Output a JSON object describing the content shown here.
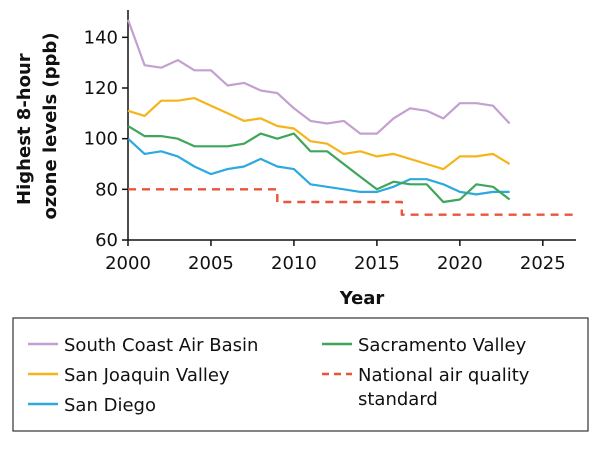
{
  "chart_data": {
    "type": "line",
    "xlabel": "Year",
    "ylabel_lines": [
      "Highest 8-hour",
      "ozone levels (ppb)"
    ],
    "xlim": [
      2000,
      2027
    ],
    "ylim": [
      60,
      150
    ],
    "xticks": [
      2000,
      2005,
      2010,
      2015,
      2020,
      2025
    ],
    "yticks": [
      60,
      80,
      100,
      120,
      140
    ],
    "grid": false,
    "legend_position": "below",
    "series": [
      {
        "name": "South Coast Air Basin",
        "color": "#c3a0cf",
        "dashed": false,
        "x": [
          2000,
          2001,
          2002,
          2003,
          2004,
          2005,
          2006,
          2007,
          2008,
          2009,
          2010,
          2011,
          2012,
          2013,
          2014,
          2015,
          2016,
          2017,
          2018,
          2019,
          2020,
          2021,
          2022,
          2023,
          2024,
          2025
        ],
        "values": [
          147,
          129,
          128,
          131,
          127,
          127,
          121,
          122,
          119,
          118,
          112,
          107,
          106,
          107,
          102,
          102,
          108,
          112,
          111,
          108,
          114,
          114,
          113,
          106,
          null,
          null
        ]
      },
      {
        "name": "San Joaquin Valley",
        "color": "#f5b51a",
        "dashed": false,
        "x": [
          2000,
          2001,
          2002,
          2003,
          2004,
          2005,
          2006,
          2007,
          2008,
          2009,
          2010,
          2011,
          2012,
          2013,
          2014,
          2015,
          2016,
          2017,
          2018,
          2019,
          2020,
          2021,
          2022,
          2023,
          2024,
          2025
        ],
        "values": [
          111,
          109,
          115,
          115,
          116,
          113,
          110,
          107,
          108,
          105,
          104,
          99,
          98,
          94,
          95,
          93,
          94,
          92,
          90,
          88,
          93,
          93,
          94,
          90,
          null,
          null
        ]
      },
      {
        "name": "San Diego",
        "color": "#2ca9df",
        "dashed": false,
        "x": [
          2000,
          2001,
          2002,
          2003,
          2004,
          2005,
          2006,
          2007,
          2008,
          2009,
          2010,
          2011,
          2012,
          2013,
          2014,
          2015,
          2016,
          2017,
          2018,
          2019,
          2020,
          2021,
          2022,
          2023,
          2024,
          2025
        ],
        "values": [
          100,
          94,
          95,
          93,
          89,
          86,
          88,
          89,
          92,
          89,
          88,
          82,
          81,
          80,
          79,
          79,
          81,
          84,
          84,
          82,
          79,
          78,
          79,
          79,
          null,
          null
        ]
      },
      {
        "name": "Sacramento Valley",
        "color": "#3ea65a",
        "dashed": false,
        "x": [
          2000,
          2001,
          2002,
          2003,
          2004,
          2005,
          2006,
          2007,
          2008,
          2009,
          2010,
          2011,
          2012,
          2013,
          2014,
          2015,
          2016,
          2017,
          2018,
          2019,
          2020,
          2021,
          2022,
          2023,
          2024,
          2025
        ],
        "values": [
          105,
          101,
          101,
          100,
          97,
          97,
          97,
          98,
          102,
          100,
          102,
          95,
          95,
          90,
          85,
          80,
          83,
          82,
          82,
          75,
          76,
          82,
          81,
          76,
          null,
          null
        ]
      },
      {
        "name": "National air quality standard",
        "legend_lines": [
          "National air quality",
          "standard"
        ],
        "color": "#e8553a",
        "dashed": true,
        "step": true,
        "x": [
          2000,
          2009,
          2009,
          2016.5,
          2016.5,
          2027
        ],
        "values": [
          80,
          80,
          75,
          75,
          70,
          70
        ]
      }
    ]
  }
}
